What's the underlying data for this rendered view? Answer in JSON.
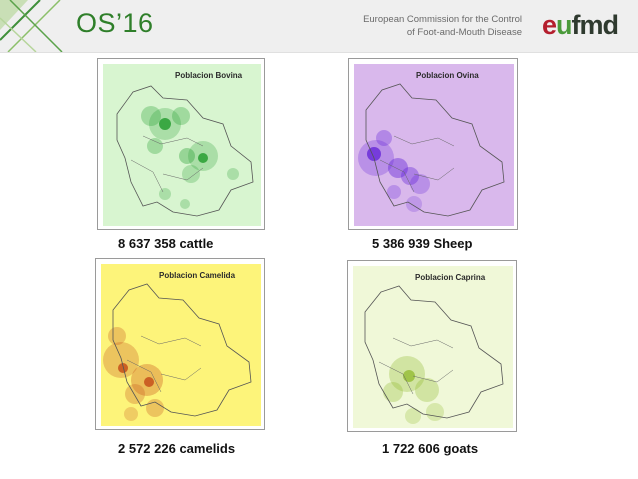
{
  "header": {
    "title": "OS’16",
    "org_line1": "European Commission for the Control",
    "org_line2": "of Foot-and-Mouth Disease",
    "logo_part1": "e",
    "logo_part2": "u",
    "logo_part3": "fmd"
  },
  "maps": [
    {
      "map_title": "Poblacion Bovina",
      "caption": "8 637 358 cattle",
      "bg": "#d8f5d0",
      "heat": "#1f9a2a"
    },
    {
      "map_title": "Poblacion Ovina",
      "caption": "5 386 939 Sheep",
      "bg": "#d9b8ec",
      "heat": "#5a18d6"
    },
    {
      "map_title": "Poblacion Camelida",
      "caption": "2 572 226 camelids",
      "bg": "#fdf47a",
      "heat": "#c8551e"
    },
    {
      "map_title": "Poblacion Caprina",
      "caption": "1 722 606 goats",
      "bg": "#f0f8d8",
      "heat": "#8cb624"
    }
  ]
}
